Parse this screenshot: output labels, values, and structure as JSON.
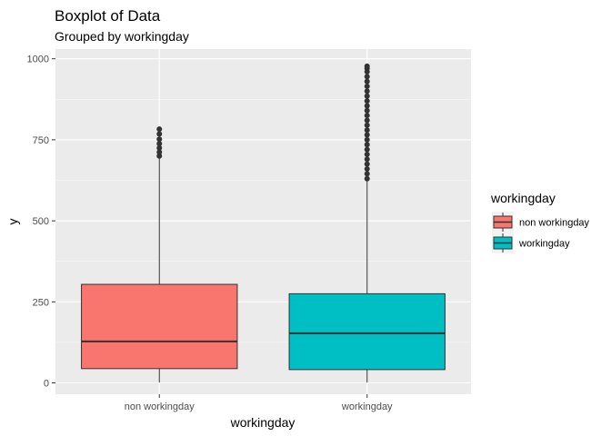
{
  "chart_data": {
    "type": "boxplot",
    "title": "Boxplot of Data",
    "subtitle": "Grouped by workingday",
    "xlabel": "workingday",
    "ylabel": "y",
    "ylim": [
      -35,
      1030
    ],
    "yticks": [
      0,
      250,
      500,
      750,
      1000
    ],
    "ytick_labels": [
      "0",
      "250",
      "500",
      "750",
      "1000"
    ],
    "grid": true,
    "legend": {
      "title": "workingday",
      "position": "right",
      "entries": [
        "non workingday",
        "workingday"
      ]
    },
    "categories": [
      "non workingday",
      "workingday"
    ],
    "boxes": [
      {
        "category": "non workingday",
        "color": "#F8766D",
        "whisker_low": 1,
        "q1": 44,
        "median": 128,
        "q3": 304,
        "whisker_high": 693,
        "outliers": [
          700,
          712,
          725,
          738,
          752,
          768,
          783
        ]
      },
      {
        "category": "workingday",
        "color": "#00BFC4",
        "whisker_low": 1,
        "q1": 41,
        "median": 153,
        "q3": 275,
        "whisker_high": 624,
        "outliers": [
          630,
          645,
          660,
          675,
          690,
          705,
          720,
          735,
          750,
          765,
          780,
          795,
          810,
          825,
          840,
          855,
          870,
          885,
          900,
          915,
          930,
          945,
          960,
          970,
          977
        ]
      }
    ]
  },
  "colors": {
    "panel_background": "#EBEBEB",
    "grid_major": "#FFFFFF",
    "outlier": "#333333",
    "median_line": "#333333"
  }
}
